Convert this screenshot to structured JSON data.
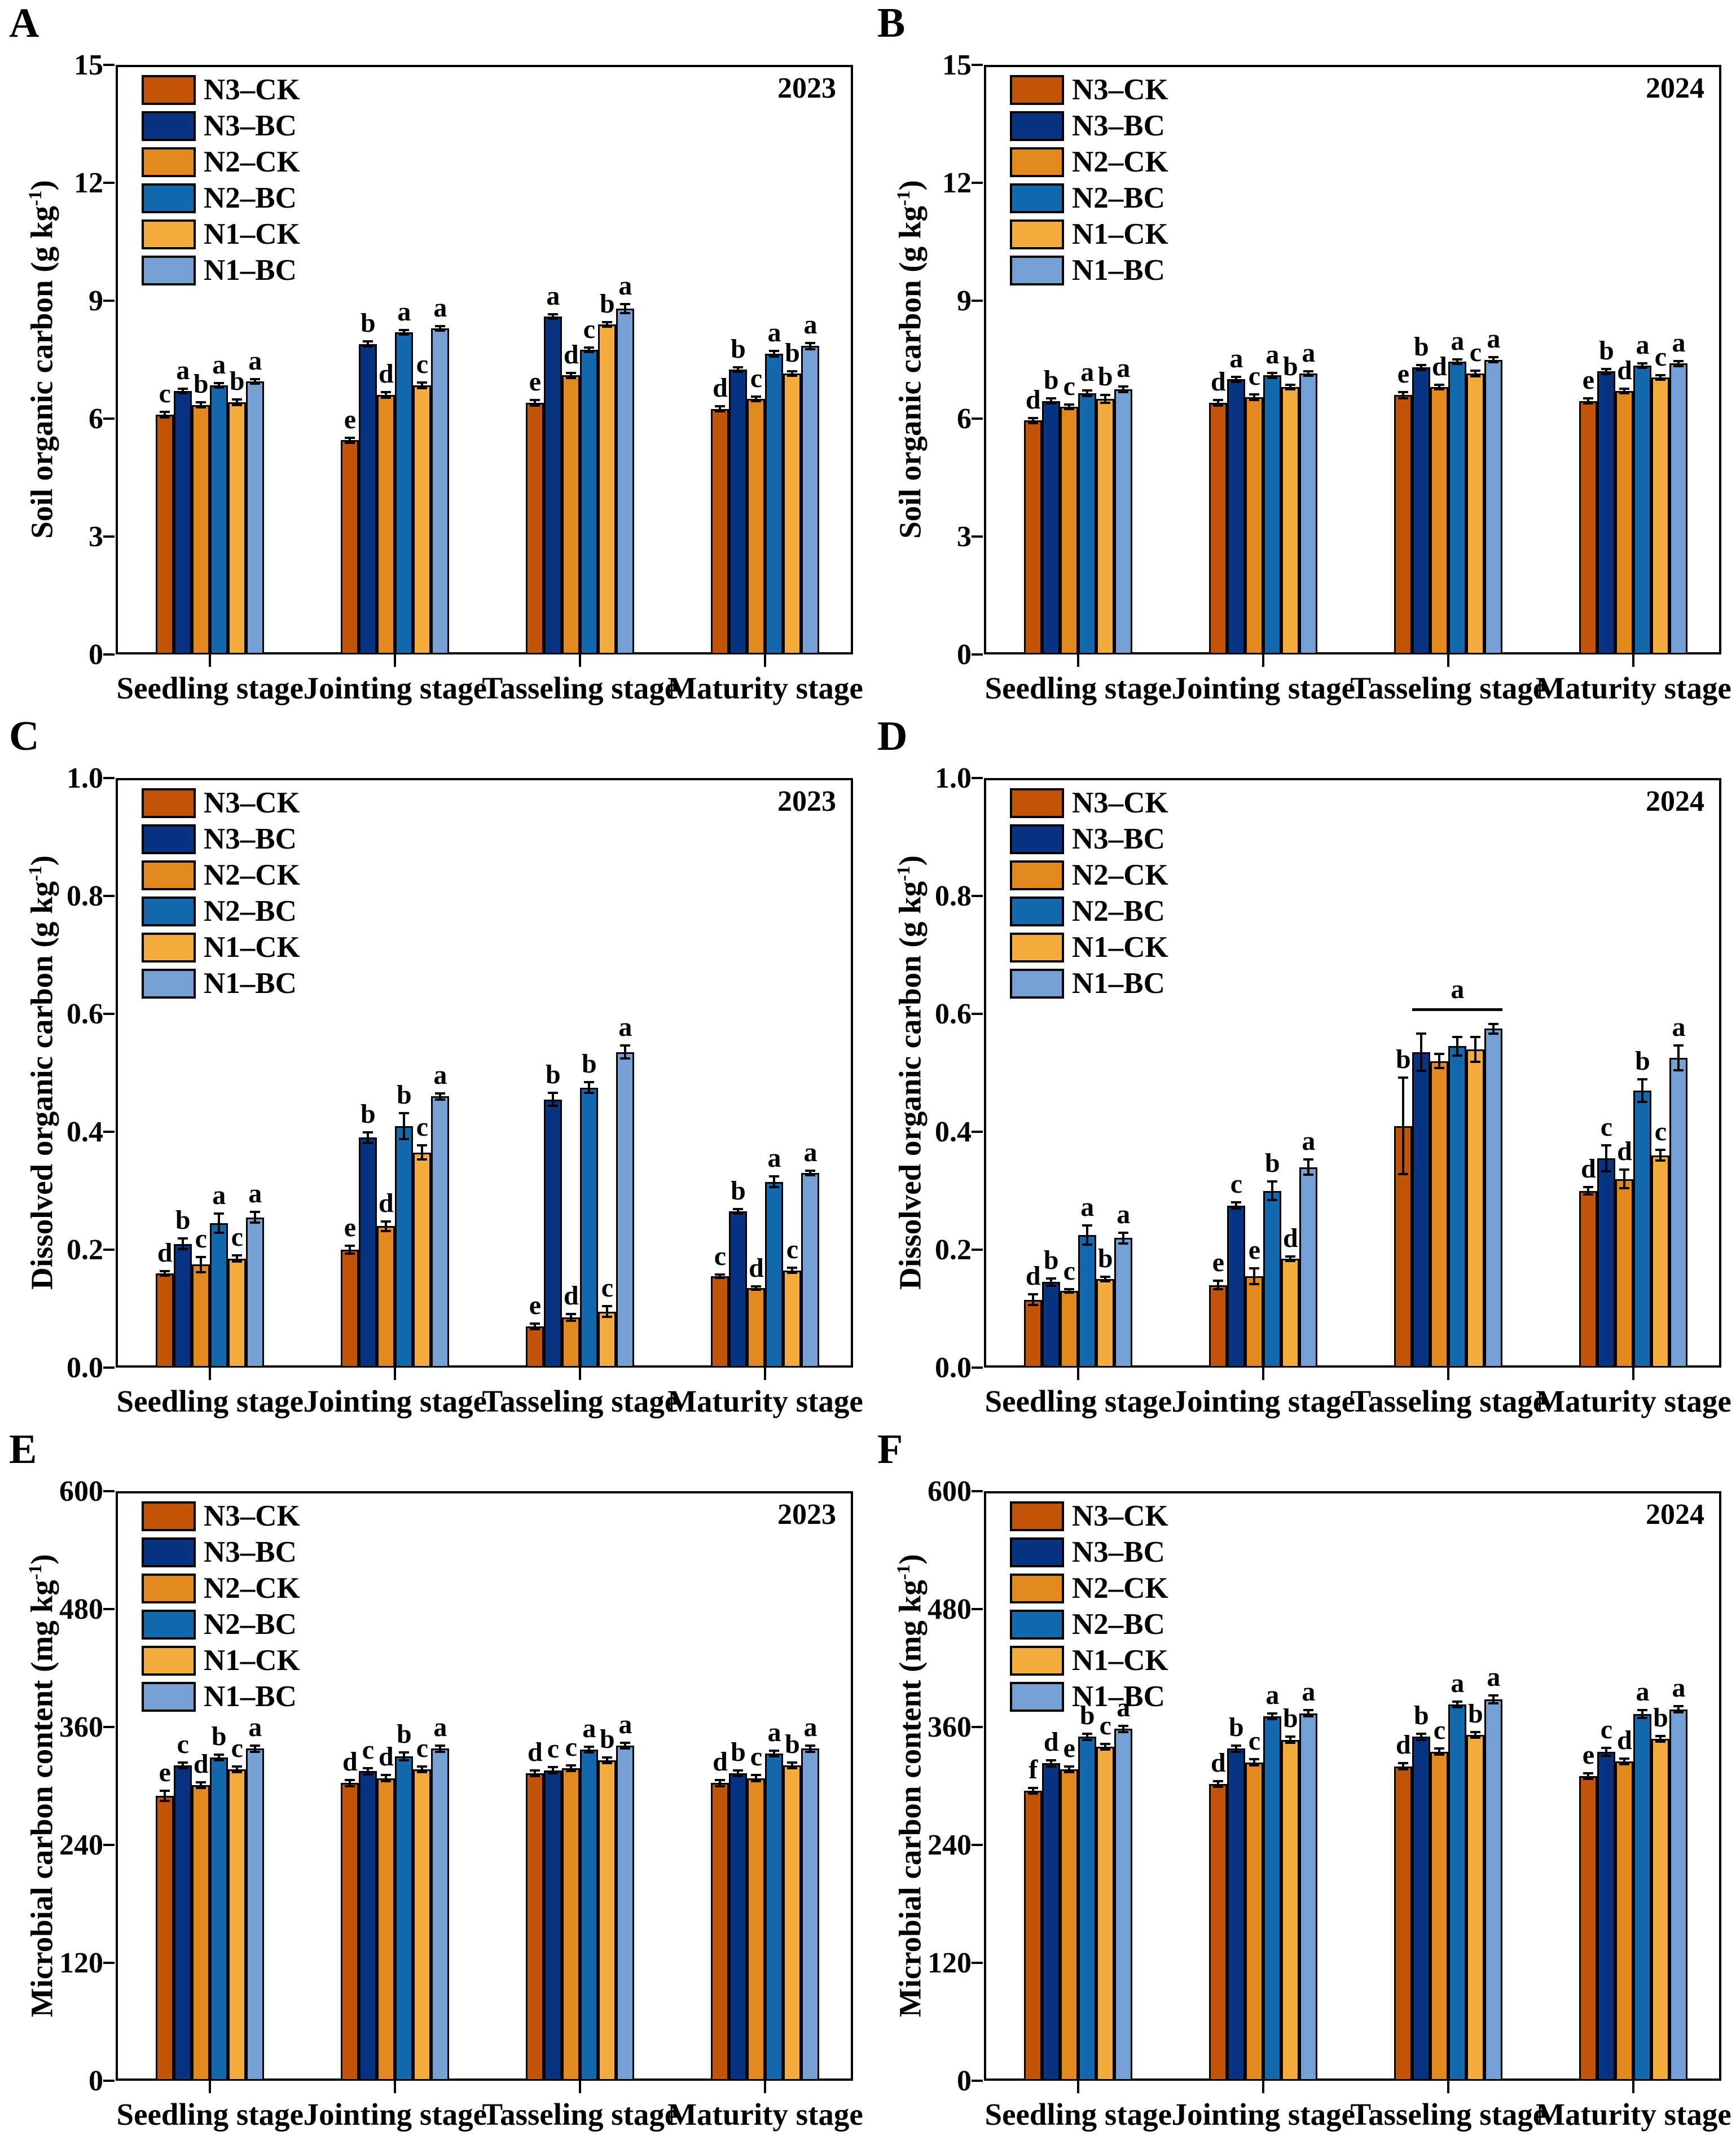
{
  "chart_data": {
    "type": "bar",
    "layout": "2x3-grid of grouped bar charts with error bars and significance letters",
    "categories": [
      "Seedling stage",
      "Jointing stage",
      "Tasseling stage",
      "Maturity stage"
    ],
    "series_names": [
      "N3–CK",
      "N3–BC",
      "N2–CK",
      "N2–BC",
      "N1–CK",
      "N1–BC"
    ],
    "series_colors": [
      "#C25408",
      "#083380",
      "#E2881E",
      "#1468AE",
      "#F4AB3E",
      "#74A0D4"
    ],
    "panels": [
      {
        "id": "A",
        "year": "2023",
        "ylabel_pre": "Soil organic carbon (g kg",
        "ylabel_sup": "-1",
        "ylabel_post": ")",
        "ymax": 15,
        "ytick_values": [
          0,
          3,
          6,
          9,
          12,
          15
        ],
        "ytick_labels": [
          "0",
          "3",
          "6",
          "9",
          "12",
          "15"
        ],
        "groups": [
          {
            "category": "Seedling stage",
            "values": [
              6.1,
              6.7,
              6.35,
              6.85,
              6.42,
              6.95
            ],
            "errors": [
              0.07,
              0.06,
              0.06,
              0.06,
              0.07,
              0.06
            ],
            "letters": [
              "c",
              "a",
              "b",
              "a",
              "b",
              "a"
            ]
          },
          {
            "category": "Jointing stage",
            "values": [
              5.45,
              7.9,
              6.6,
              8.2,
              6.85,
              8.3
            ],
            "errors": [
              0.06,
              0.06,
              0.07,
              0.06,
              0.07,
              0.06
            ],
            "letters": [
              "e",
              "b",
              "d",
              "a",
              "c",
              "a"
            ]
          },
          {
            "category": "Tasseling stage",
            "values": [
              6.4,
              8.6,
              7.1,
              7.75,
              8.4,
              8.8
            ],
            "errors": [
              0.07,
              0.06,
              0.06,
              0.06,
              0.06,
              0.12
            ],
            "letters": [
              "e",
              "a",
              "d",
              "c",
              "b",
              "a"
            ]
          },
          {
            "category": "Maturity stage",
            "values": [
              6.25,
              7.25,
              6.5,
              7.65,
              7.15,
              7.85
            ],
            "errors": [
              0.07,
              0.06,
              0.06,
              0.07,
              0.06,
              0.08
            ],
            "letters": [
              "d",
              "b",
              "c",
              "a",
              "b",
              "a"
            ]
          }
        ]
      },
      {
        "id": "B",
        "year": "2024",
        "ylabel_pre": "Soil organic carbon (g kg",
        "ylabel_sup": "-1",
        "ylabel_post": ")",
        "ymax": 15,
        "ytick_values": [
          0,
          3,
          6,
          9,
          12,
          15
        ],
        "ytick_labels": [
          "0",
          "3",
          "6",
          "9",
          "12",
          "15"
        ],
        "groups": [
          {
            "category": "Seedling stage",
            "values": [
              5.95,
              6.45,
              6.3,
              6.65,
              6.5,
              6.75
            ],
            "errors": [
              0.06,
              0.06,
              0.06,
              0.07,
              0.1,
              0.07
            ],
            "letters": [
              "d",
              "b",
              "c",
              "a",
              "b",
              "a"
            ]
          },
          {
            "category": "Jointing stage",
            "values": [
              6.4,
              7.0,
              6.55,
              7.1,
              6.8,
              7.15
            ],
            "errors": [
              0.07,
              0.06,
              0.07,
              0.06,
              0.06,
              0.06
            ],
            "letters": [
              "d",
              "a",
              "c",
              "a",
              "b",
              "a"
            ]
          },
          {
            "category": "Tasseling stage",
            "values": [
              6.6,
              7.3,
              6.8,
              7.45,
              7.15,
              7.5
            ],
            "errors": [
              0.08,
              0.06,
              0.06,
              0.06,
              0.07,
              0.06
            ],
            "letters": [
              "e",
              "b",
              "d",
              "a",
              "c",
              "a"
            ]
          },
          {
            "category": "Maturity stage",
            "values": [
              6.45,
              7.2,
              6.7,
              7.35,
              7.05,
              7.4
            ],
            "errors": [
              0.06,
              0.06,
              0.06,
              0.06,
              0.06,
              0.06
            ],
            "letters": [
              "e",
              "b",
              "d",
              "a",
              "c",
              "a"
            ]
          }
        ]
      },
      {
        "id": "C",
        "year": "2023",
        "ylabel_pre": "Dissolved organic carbon (g kg",
        "ylabel_sup": "-1",
        "ylabel_post": ")",
        "ymax": 1.0,
        "ytick_values": [
          0,
          0.2,
          0.4,
          0.6,
          0.8,
          1.0
        ],
        "ytick_labels": [
          "0.0",
          "0.2",
          "0.4",
          "0.6",
          "0.8",
          "1.0"
        ],
        "groups": [
          {
            "category": "Seedling stage",
            "values": [
              0.16,
              0.21,
              0.175,
              0.245,
              0.185,
              0.255
            ],
            "errors": [
              0.004,
              0.009,
              0.013,
              0.016,
              0.005,
              0.009
            ],
            "letters": [
              "d",
              "b",
              "c",
              "a",
              "c",
              "a"
            ]
          },
          {
            "category": "Jointing stage",
            "values": [
              0.2,
              0.39,
              0.24,
              0.41,
              0.365,
              0.46
            ],
            "errors": [
              0.007,
              0.009,
              0.008,
              0.022,
              0.012,
              0.005
            ],
            "letters": [
              "e",
              "b",
              "d",
              "b",
              "c",
              "a"
            ]
          },
          {
            "category": "Tasseling stage",
            "values": [
              0.07,
              0.455,
              0.085,
              0.475,
              0.095,
              0.535
            ],
            "errors": [
              0.005,
              0.011,
              0.006,
              0.009,
              0.009,
              0.011
            ],
            "letters": [
              "e",
              "b",
              "d",
              "b",
              "c",
              "a"
            ]
          },
          {
            "category": "Maturity stage",
            "values": [
              0.155,
              0.265,
              0.135,
              0.315,
              0.165,
              0.33
            ],
            "errors": [
              0.003,
              0.004,
              0.003,
              0.009,
              0.004,
              0.004
            ],
            "letters": [
              "c",
              "b",
              "d",
              "a",
              "c",
              "a"
            ]
          }
        ]
      },
      {
        "id": "D",
        "year": "2024",
        "ylabel_pre": "Dissolved organic carbon (g kg",
        "ylabel_sup": "-1",
        "ylabel_post": ")",
        "ymax": 1.0,
        "ytick_values": [
          0,
          0.2,
          0.4,
          0.6,
          0.8,
          1.0
        ],
        "ytick_labels": [
          "0.0",
          "0.2",
          "0.4",
          "0.6",
          "0.8",
          "1.0"
        ],
        "groups": [
          {
            "category": "Seedling stage",
            "values": [
              0.115,
              0.145,
              0.13,
              0.225,
              0.15,
              0.22
            ],
            "errors": [
              0.009,
              0.006,
              0.003,
              0.016,
              0.004,
              0.009
            ],
            "letters": [
              "d",
              "b",
              "c",
              "a",
              "b",
              "a"
            ]
          },
          {
            "category": "Jointing stage",
            "values": [
              0.14,
              0.275,
              0.155,
              0.3,
              0.185,
              0.34
            ],
            "errors": [
              0.007,
              0.005,
              0.013,
              0.016,
              0.004,
              0.013
            ],
            "letters": [
              "e",
              "c",
              "e",
              "b",
              "d",
              "a"
            ]
          },
          {
            "category": "Tasseling stage",
            "values": [
              0.41,
              0.535,
              0.52,
              0.545,
              0.54,
              0.575
            ],
            "errors": [
              0.082,
              0.032,
              0.012,
              0.016,
              0.021,
              0.008
            ],
            "letters": [
              "b",
              "",
              "",
              "",
              "",
              ""
            ],
            "bracket": {
              "from": 1,
              "to": 5,
              "label": "a",
              "y": 0.605
            }
          },
          {
            "category": "Maturity stage",
            "values": [
              0.3,
              0.355,
              0.32,
              0.47,
              0.36,
              0.525
            ],
            "errors": [
              0.006,
              0.022,
              0.016,
              0.019,
              0.009,
              0.021
            ],
            "letters": [
              "d",
              "c",
              "d",
              "b",
              "c",
              "a"
            ]
          }
        ]
      },
      {
        "id": "E",
        "year": "2023",
        "ylabel_pre": "Microbial carbon content (mg kg",
        "ylabel_sup": "-1",
        "ylabel_post": ")",
        "ymax": 600,
        "ytick_values": [
          0,
          120,
          240,
          360,
          480,
          600
        ],
        "ytick_labels": [
          "0",
          "120",
          "240",
          "360",
          "480",
          "600"
        ],
        "groups": [
          {
            "category": "Seedling stage",
            "values": [
              290,
              321,
              301,
              329,
              317,
              338
            ],
            "errors": [
              5,
              3,
              3,
              3,
              3,
              3
            ],
            "letters": [
              "e",
              "c",
              "d",
              "b",
              "c",
              "a"
            ]
          },
          {
            "category": "Jointing stage",
            "values": [
              303,
              315,
              308,
              330,
              317,
              338
            ],
            "errors": [
              3,
              3,
              3,
              4,
              3,
              3
            ],
            "letters": [
              "d",
              "c",
              "d",
              "b",
              "c",
              "a"
            ]
          },
          {
            "category": "Tasseling stage",
            "values": [
              313,
              316,
              318,
              337,
              326,
              341
            ],
            "errors": [
              3,
              3,
              3,
              3,
              3,
              3
            ],
            "letters": [
              "d",
              "c",
              "c",
              "a",
              "b",
              "a"
            ]
          },
          {
            "category": "Maturity stage",
            "values": [
              303,
              313,
              308,
              333,
              321,
              338
            ],
            "errors": [
              3,
              3,
              3,
              3,
              3,
              3
            ],
            "letters": [
              "d",
              "b",
              "c",
              "a",
              "b",
              "a"
            ]
          }
        ]
      },
      {
        "id": "F",
        "year": "2024",
        "ylabel_pre": "Microbial carbon content (mg kg",
        "ylabel_sup": "-1",
        "ylabel_post": ")",
        "ymax": 600,
        "ytick_values": [
          0,
          120,
          240,
          360,
          480,
          600
        ],
        "ytick_labels": [
          "0",
          "120",
          "240",
          "360",
          "480",
          "600"
        ],
        "groups": [
          {
            "category": "Seedling stage",
            "values": [
              295,
              323,
              317,
              350,
              340,
              358
            ],
            "errors": [
              3,
              3,
              3,
              3,
              3,
              3
            ],
            "letters": [
              "f",
              "d",
              "e",
              "b",
              "c",
              "a"
            ]
          },
          {
            "category": "Jointing stage",
            "values": [
              302,
              338,
              324,
              371,
              347,
              374
            ],
            "errors": [
              3,
              3,
              3,
              3,
              3,
              3
            ],
            "letters": [
              "d",
              "b",
              "c",
              "a",
              "b",
              "a"
            ]
          },
          {
            "category": "Tasseling stage",
            "values": [
              320,
              350,
              335,
              383,
              352,
              388
            ],
            "errors": [
              3,
              3,
              3,
              3,
              3,
              4
            ],
            "letters": [
              "d",
              "b",
              "c",
              "a",
              "b",
              "a"
            ]
          },
          {
            "category": "Maturity stage",
            "values": [
              310,
              335,
              325,
              373,
              348,
              378
            ],
            "errors": [
              3,
              4,
              3,
              4,
              3,
              3
            ],
            "letters": [
              "e",
              "c",
              "d",
              "a",
              "b",
              "a"
            ]
          }
        ]
      }
    ]
  }
}
